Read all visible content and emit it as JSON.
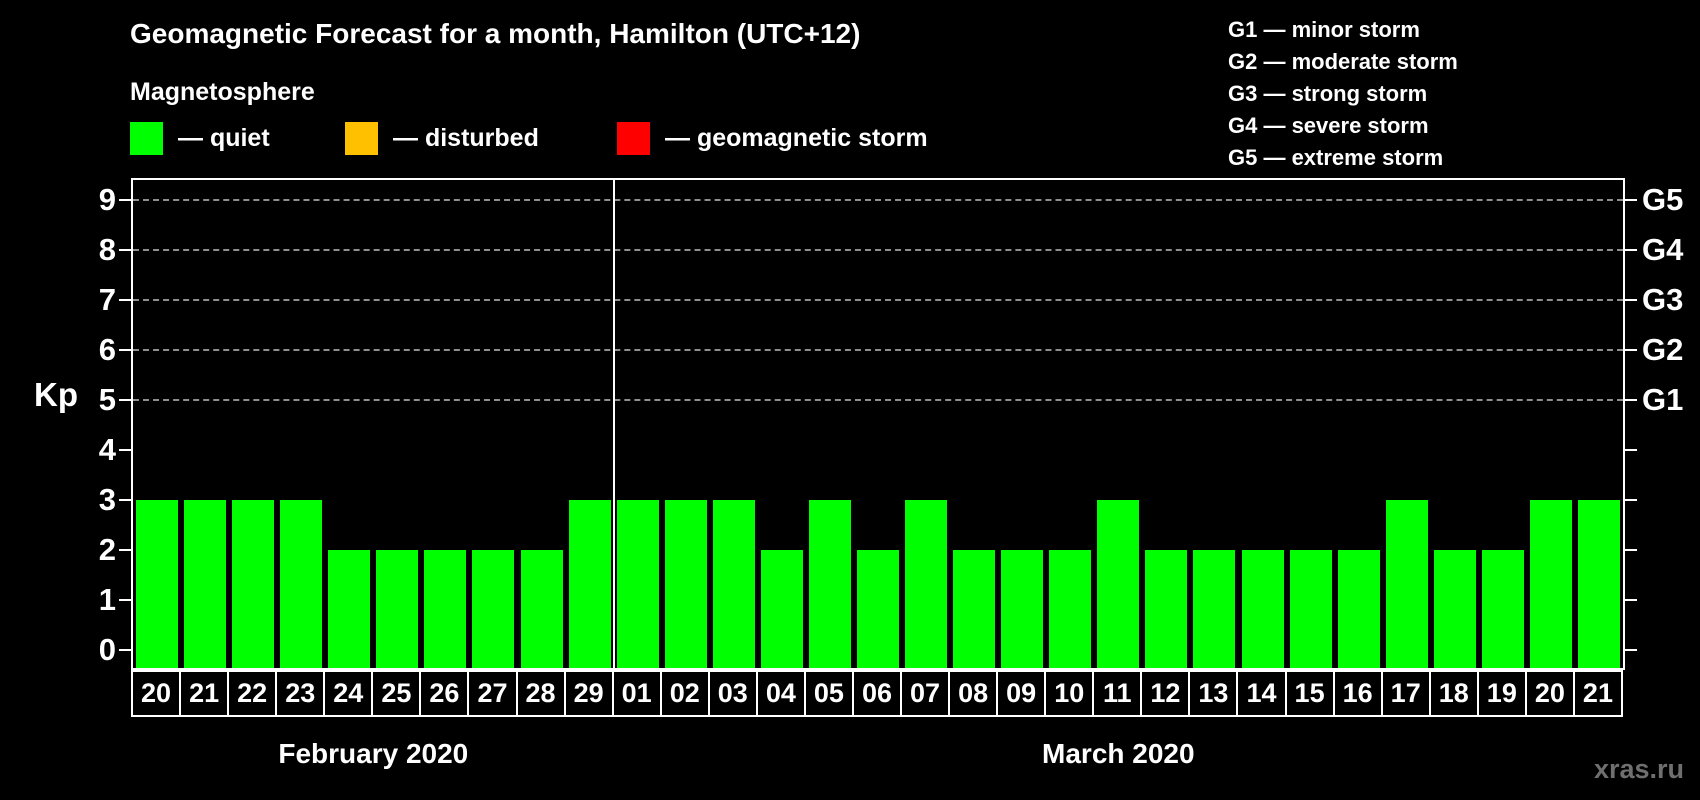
{
  "title": "Geomagnetic Forecast for a month, Hamilton (UTC+12)",
  "subtitle": "Magnetosphere",
  "legend": {
    "items": [
      {
        "name": "quiet",
        "label": "— quiet",
        "color": "#00ff00"
      },
      {
        "name": "disturbed",
        "label": "— disturbed",
        "color": "#ffc000"
      },
      {
        "name": "storm",
        "label": "— geomagnetic storm",
        "color": "#ff0000"
      }
    ]
  },
  "storm_scale": [
    "G1 — minor storm",
    "G2 — moderate storm",
    "G3 — strong storm",
    "G4 — severe storm",
    "G5 — extreme storm"
  ],
  "watermark": "xras.ru",
  "chart_data": {
    "type": "bar",
    "title": "Geomagnetic Forecast for a month, Hamilton (UTC+12)",
    "ylabel": "Kp",
    "ylim": [
      0,
      9.4
    ],
    "y_ticks": [
      0,
      1,
      2,
      3,
      4,
      5,
      6,
      7,
      8,
      9
    ],
    "grid_levels": [
      5,
      6,
      7,
      8,
      9
    ],
    "right_axis": [
      {
        "label": "G1",
        "kp": 5
      },
      {
        "label": "G2",
        "kp": 6
      },
      {
        "label": "G3",
        "kp": 7
      },
      {
        "label": "G4",
        "kp": 8
      },
      {
        "label": "G5",
        "kp": 9
      }
    ],
    "bar_color": "#00ff00",
    "legend_position": "top-left",
    "grid": "dashed horizontal at storm levels only",
    "series": [
      {
        "month": "February 2020",
        "categories": [
          "20",
          "21",
          "22",
          "23",
          "24",
          "25",
          "26",
          "27",
          "28",
          "29"
        ],
        "values": [
          3,
          3,
          3,
          3,
          2,
          2,
          2,
          2,
          2,
          3
        ]
      },
      {
        "month": "March 2020",
        "categories": [
          "01",
          "02",
          "03",
          "04",
          "05",
          "06",
          "07",
          "08",
          "09",
          "10",
          "11",
          "12",
          "13",
          "14",
          "15",
          "16",
          "17",
          "18",
          "19",
          "20",
          "21"
        ],
        "values": [
          3,
          3,
          3,
          2,
          3,
          2,
          3,
          2,
          2,
          2,
          3,
          2,
          2,
          2,
          2,
          2,
          3,
          2,
          2,
          3,
          3
        ]
      }
    ]
  }
}
